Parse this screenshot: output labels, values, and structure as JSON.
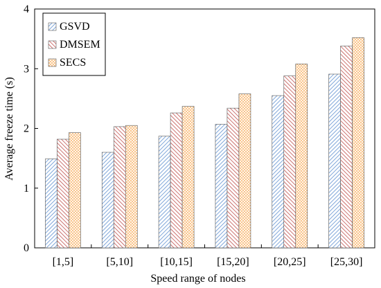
{
  "chart_data": {
    "type": "bar",
    "title": "",
    "xlabel": "Speed range of nodes",
    "ylabel": "Average freeze time (s)",
    "categories": [
      "[1,5]",
      "[5,10]",
      "[10,15]",
      "[15,20]",
      "[20,25]",
      "[25,30]"
    ],
    "ylim": [
      0,
      4
    ],
    "yticks": [
      "0",
      "1",
      "2",
      "3",
      "4"
    ],
    "grid": false,
    "legend_position": "top-left",
    "series": [
      {
        "name": "GSVD",
        "values": [
          1.49,
          1.6,
          1.87,
          2.07,
          2.55,
          2.91
        ],
        "color": "#7fa6d9",
        "pattern": "diagonal-hatch"
      },
      {
        "name": "DMSEM",
        "values": [
          1.82,
          2.03,
          2.26,
          2.34,
          2.88,
          3.38
        ],
        "color": "#c0504d",
        "pattern": "diagonal-hatch"
      },
      {
        "name": "SECS",
        "values": [
          1.93,
          2.05,
          2.37,
          2.58,
          3.08,
          3.52
        ],
        "color": "#f5a04a",
        "pattern": "dotted"
      }
    ]
  }
}
